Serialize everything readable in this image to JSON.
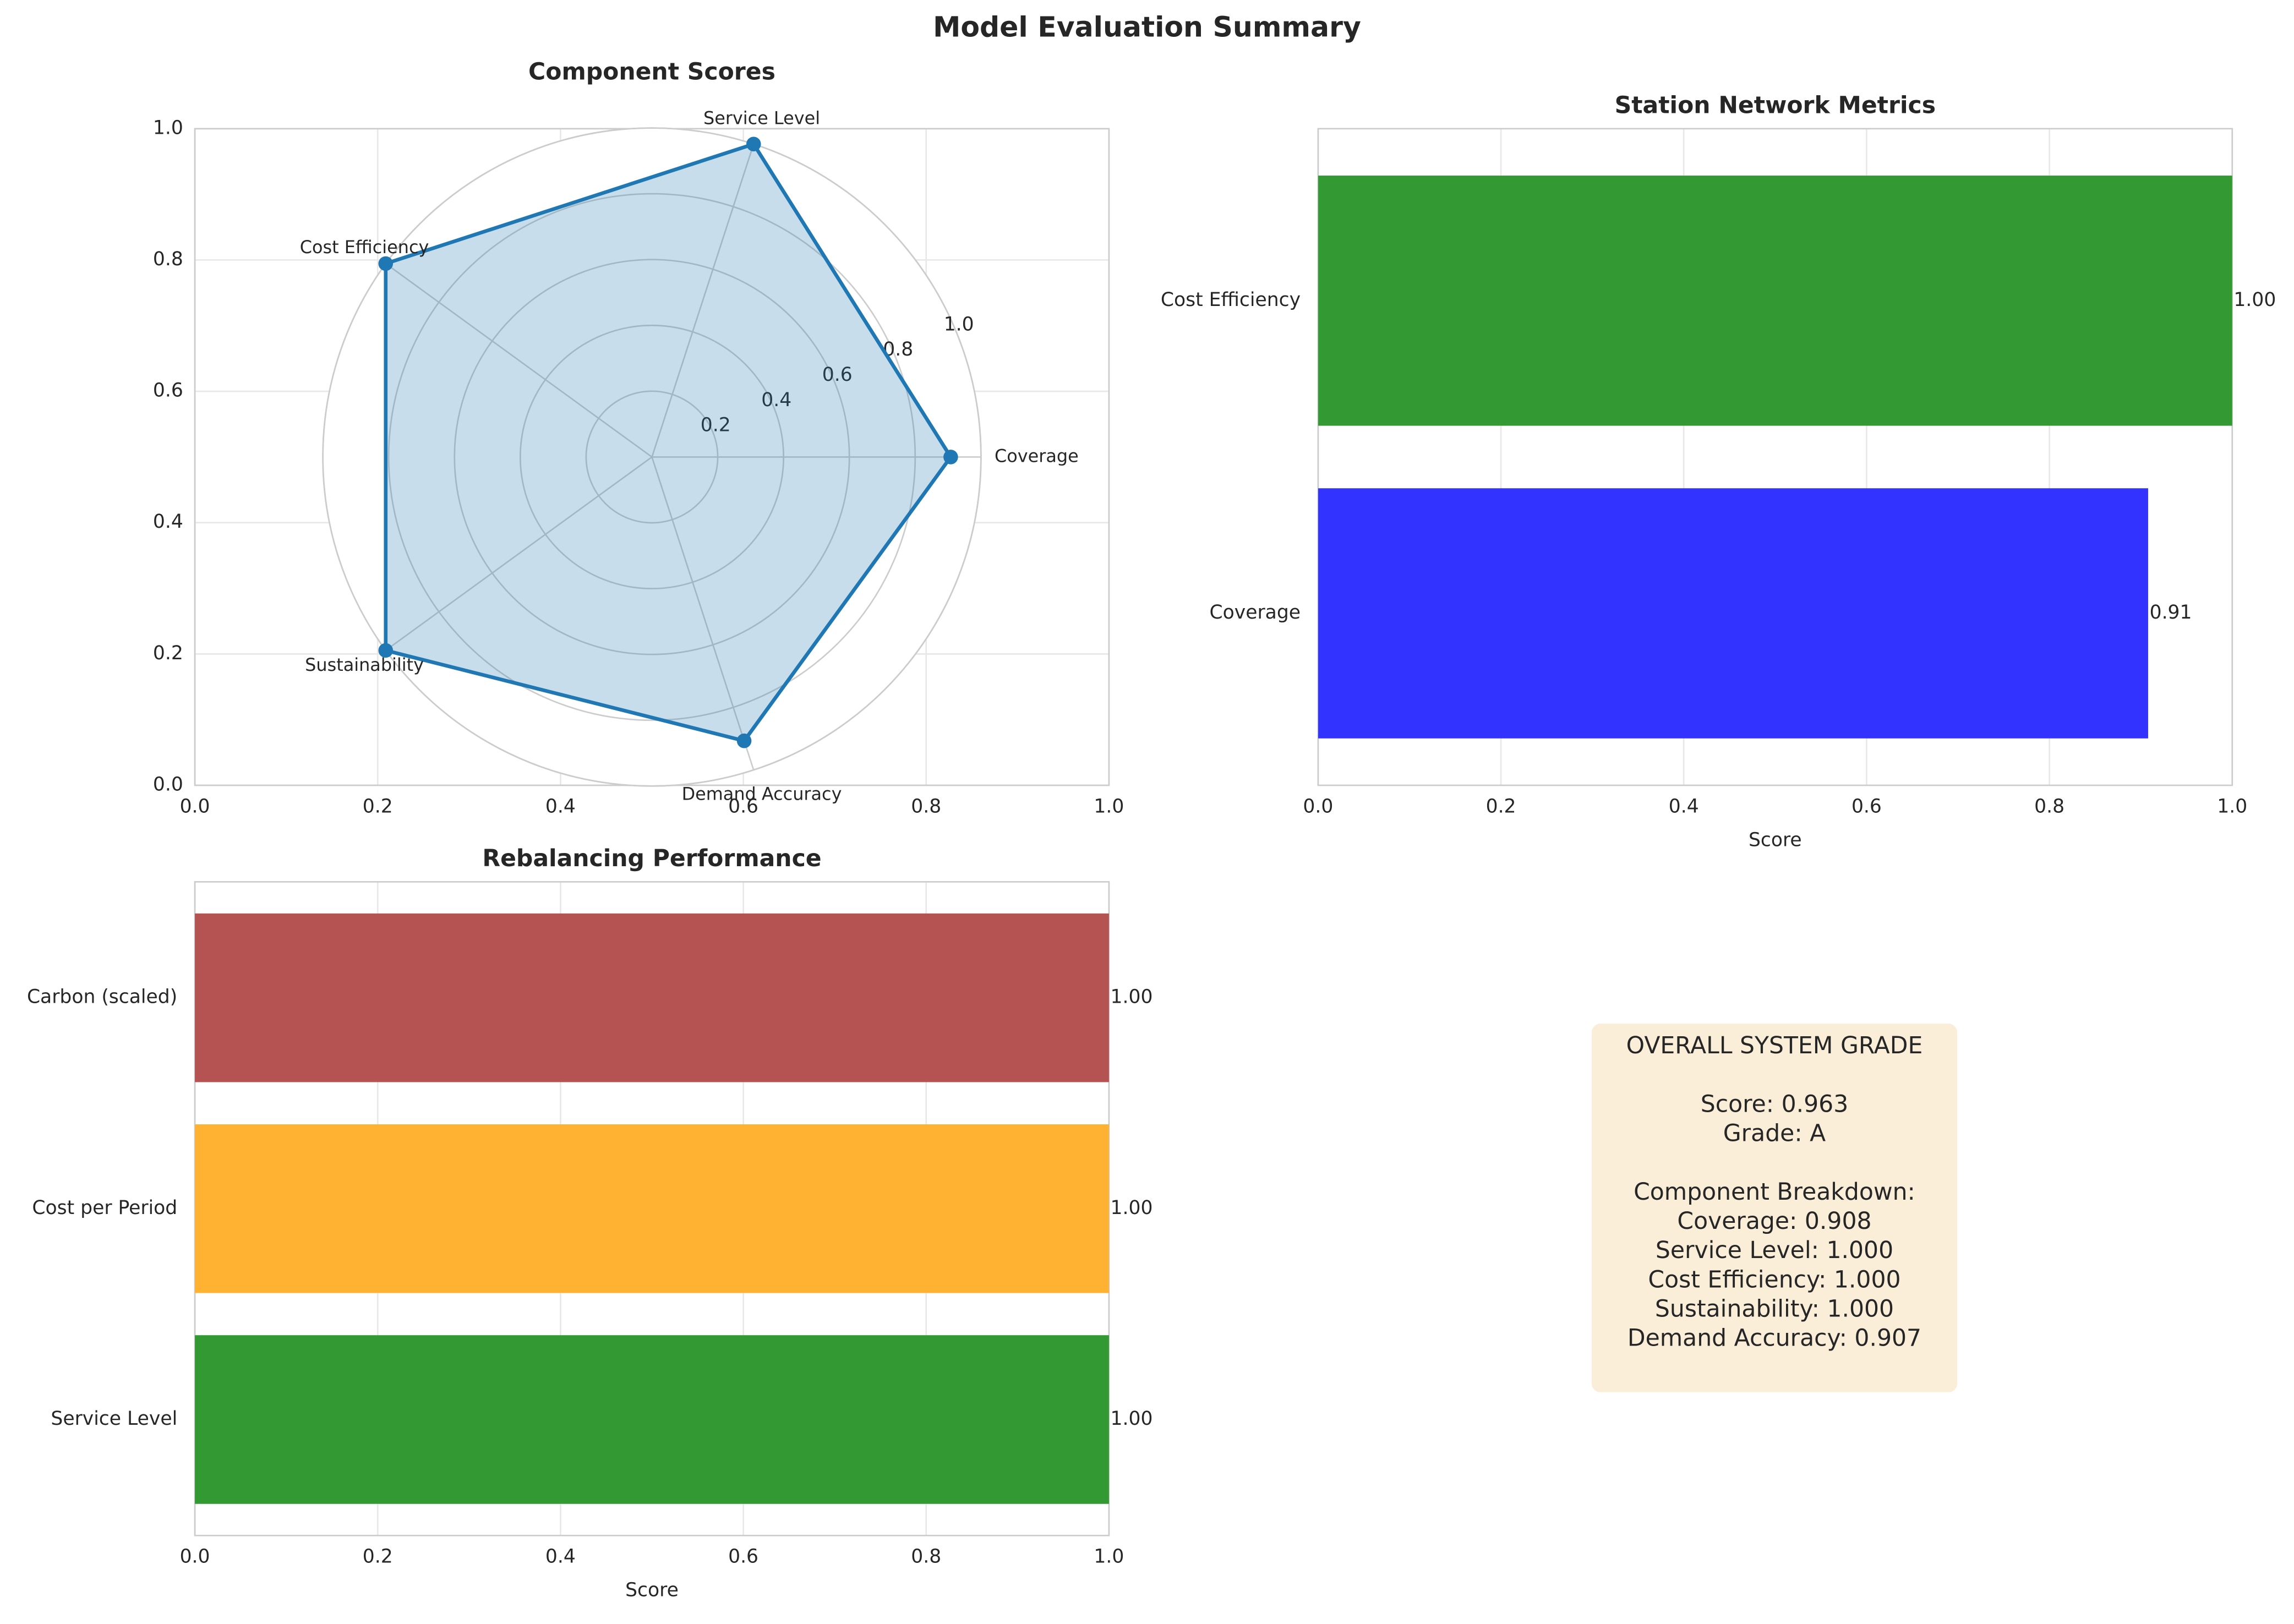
{
  "title": "Model Evaluation Summary",
  "chart_data": [
    {
      "type": "radar",
      "title": "Component Scores",
      "categories": [
        "Coverage",
        "Service Level",
        "Cost Efficiency",
        "Sustainability",
        "Demand Accuracy"
      ],
      "values": [
        0.908,
        1.0,
        1.0,
        1.0,
        0.907
      ],
      "color": "#1f77b4",
      "rlim": [
        0,
        1
      ],
      "rticks": [
        0.2,
        0.4,
        0.6,
        0.8,
        {
          "value": 1,
          "label": "1.0"
        }
      ],
      "xlim": [
        0,
        1
      ],
      "ylim": [
        0,
        1
      ],
      "xticks": [
        {
          "value": 0,
          "label": "0.0"
        },
        0.2,
        0.4,
        0.6,
        0.8,
        {
          "value": 1,
          "label": "1.0"
        }
      ],
      "yticks": [
        {
          "value": 0,
          "label": "0.0"
        },
        0.2,
        0.4,
        0.6,
        0.8,
        {
          "value": 1,
          "label": "1.0"
        }
      ],
      "grid": true
    },
    {
      "type": "barh",
      "title": "Station Network Metrics",
      "categories": [
        "Coverage",
        "Cost Efficiency"
      ],
      "values": [
        0.908,
        1
      ],
      "value_labels": [
        "0.91",
        "1.00"
      ],
      "colors": [
        "#3333ff",
        "#339933"
      ],
      "xlim": [
        0,
        1
      ],
      "xticks": [
        {
          "value": 0,
          "label": "0.0"
        },
        0.2,
        0.4,
        0.6,
        0.8,
        {
          "value": 1,
          "label": "1.0"
        }
      ],
      "xlabel": "Score",
      "grid": true
    },
    {
      "type": "barh",
      "title": "Rebalancing Performance",
      "categories": [
        "Service Level",
        "Cost per Period",
        "Carbon (scaled)"
      ],
      "values": [
        1,
        1,
        1
      ],
      "value_labels": [
        "1.00",
        "1.00",
        "1.00"
      ],
      "colors": [
        "#339933",
        "#ffb232",
        "#b55252"
      ],
      "xlim": [
        0,
        1
      ],
      "xticks": [
        {
          "value": 0,
          "label": "0.0"
        },
        0.2,
        0.4,
        0.6,
        0.8,
        {
          "value": 1,
          "label": "1.0"
        }
      ],
      "xlabel": "Score",
      "grid": true
    }
  ],
  "summary_box": {
    "lines": [
      "OVERALL SYSTEM GRADE",
      "Score: 0.963",
      "Grade: A",
      "Component Breakdown:",
      "Coverage: 0.908",
      "Service Level: 1.000",
      "Cost Efficiency: 1.000",
      "Sustainability: 1.000",
      "Demand Accuracy: 0.907"
    ]
  }
}
